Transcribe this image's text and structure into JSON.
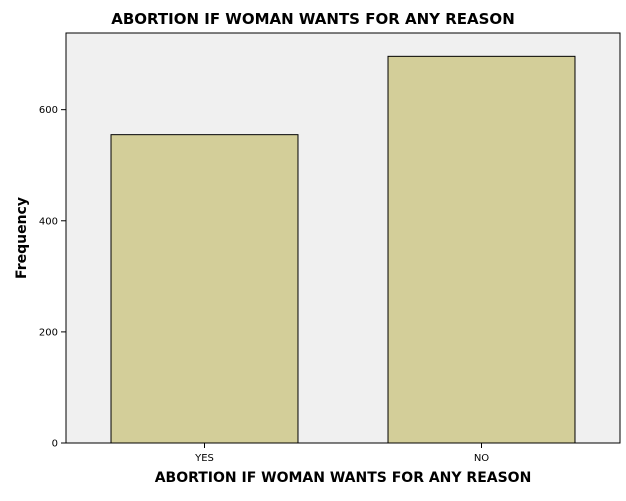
{
  "chart_data": {
    "type": "bar",
    "title": "ABORTION IF WOMAN WANTS FOR ANY REASON",
    "xlabel": "ABORTION IF WOMAN WANTS FOR ANY REASON",
    "ylabel": "Frequency",
    "categories": [
      "YES",
      "NO"
    ],
    "values": [
      555,
      696
    ],
    "ylim": [
      0,
      738
    ],
    "yticks": [
      0,
      200,
      400,
      600
    ],
    "grid": false,
    "legend": "none",
    "colors": {
      "bar_fill": "#d3ce99",
      "bar_stroke": "#000000",
      "plot_background": "#f0f0f0",
      "axis": "#000000"
    }
  }
}
